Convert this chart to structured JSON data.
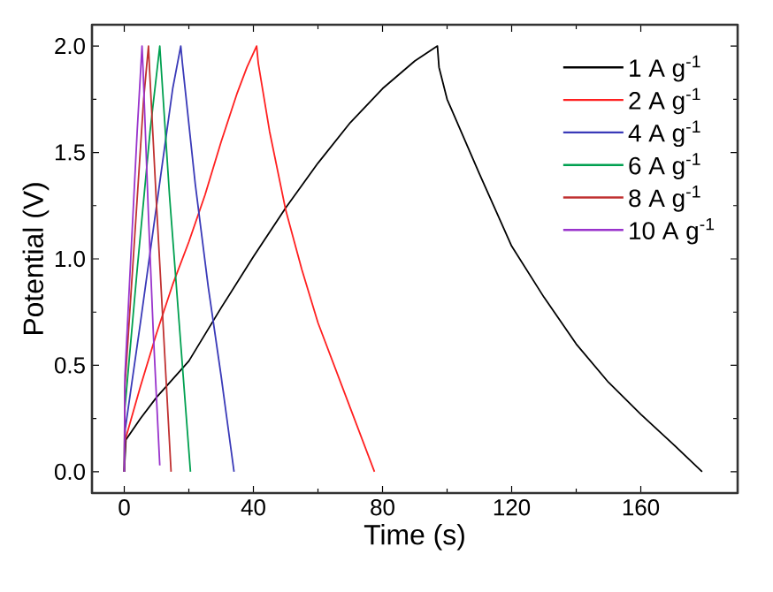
{
  "chart_data": {
    "type": "line",
    "xlabel": "Time (s)",
    "ylabel": "Potential (V)",
    "xlim": [
      -10,
      190
    ],
    "ylim": [
      -0.1,
      2.1
    ],
    "xticks": [
      0,
      40,
      80,
      120,
      160
    ],
    "yticks": [
      {
        "value": 0,
        "label": "0.0"
      },
      0.5,
      {
        "value": 1,
        "label": "1.0"
      },
      1.5,
      {
        "value": 2,
        "label": "2.0"
      }
    ],
    "legend": "top right",
    "marker": "none",
    "line_style": "solid",
    "grid": false,
    "series": [
      {
        "name": "1 A g$^{-1}$",
        "color": "#000000",
        "x": [
          0,
          0.5,
          5,
          10,
          20,
          30,
          40,
          50,
          60,
          70,
          80,
          90,
          97,
          97.5,
          100,
          110,
          120,
          130,
          140,
          150,
          160,
          170,
          179
        ],
        "values": [
          0,
          0.15,
          0.25,
          0.35,
          0.52,
          0.77,
          1.01,
          1.24,
          1.45,
          1.64,
          1.8,
          1.93,
          2.0,
          1.9,
          1.75,
          1.4,
          1.06,
          0.82,
          0.6,
          0.42,
          0.27,
          0.13,
          0
        ]
      },
      {
        "name": "2 A g$^{-1}$",
        "color": "#ff2020",
        "x": [
          0,
          0.3,
          5,
          10,
          15,
          20,
          25,
          30,
          35,
          38,
          41,
          41.5,
          45,
          50,
          55,
          60,
          65,
          70,
          77.5
        ],
        "values": [
          0,
          0.15,
          0.4,
          0.65,
          0.88,
          1.08,
          1.3,
          1.55,
          1.78,
          1.9,
          2.0,
          1.92,
          1.6,
          1.23,
          0.95,
          0.7,
          0.5,
          0.3,
          0
        ]
      },
      {
        "name": "4 A g$^{-1}$",
        "color": "#3a3ab8",
        "x": [
          0,
          0.3,
          5,
          10,
          15,
          17.5,
          18,
          22,
          26,
          30,
          34
        ],
        "values": [
          0,
          0.2,
          0.7,
          1.25,
          1.8,
          2.0,
          1.92,
          1.35,
          0.87,
          0.45,
          0
        ]
      },
      {
        "name": "6 A g$^{-1}$",
        "color": "#00a050",
        "x": [
          0,
          0.2,
          4,
          8,
          11,
          11.3,
          14,
          17,
          20.5
        ],
        "values": [
          0,
          0.3,
          0.95,
          1.6,
          2.0,
          1.93,
          1.3,
          0.7,
          0
        ]
      },
      {
        "name": "8 A g$^{-1}$",
        "color": "#c03030",
        "x": [
          0,
          0.2,
          3,
          6,
          7.5,
          7.8,
          10,
          12,
          14.5
        ],
        "values": [
          0,
          0.4,
          1.05,
          1.75,
          2.0,
          1.9,
          1.25,
          0.7,
          0
        ]
      },
      {
        "name": "10 A g$^{-1}$",
        "color": "#9933cc",
        "x": [
          0,
          0.2,
          2,
          4,
          5.5,
          5.8,
          7.5,
          9,
          11
        ],
        "values": [
          0,
          0.45,
          1.0,
          1.6,
          2.0,
          1.9,
          1.2,
          0.65,
          0.03
        ]
      }
    ]
  }
}
